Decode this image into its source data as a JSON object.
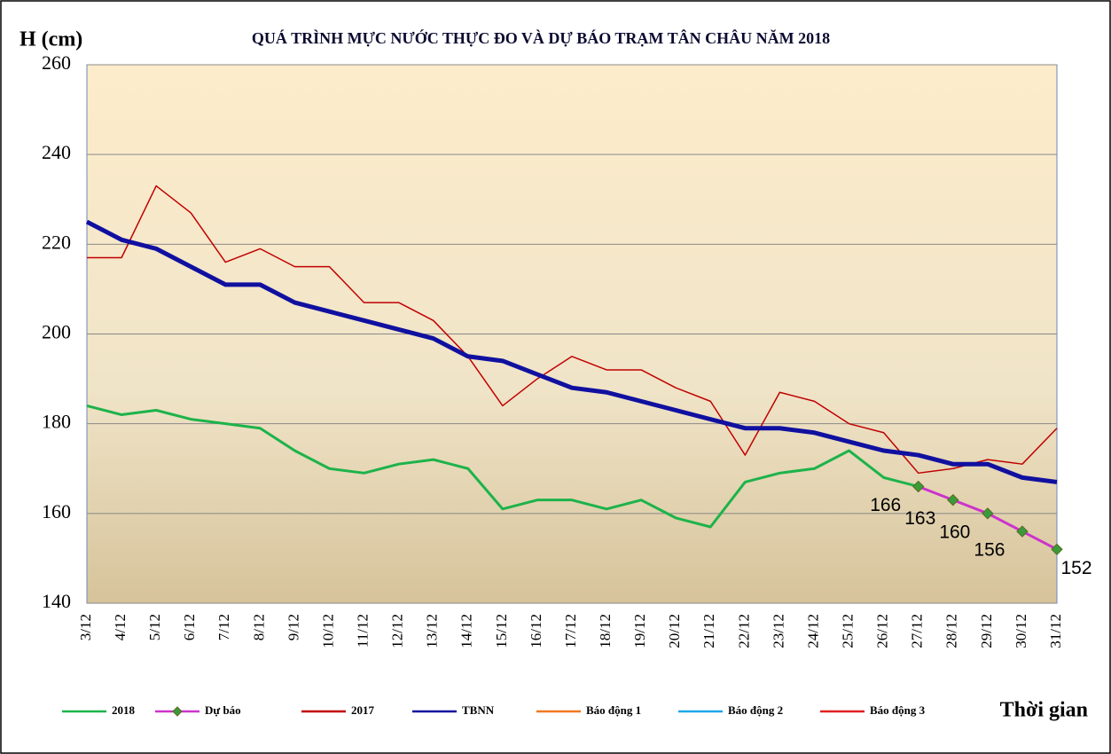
{
  "chart_data": {
    "type": "line",
    "title": "QUÁ TRÌNH MỰC NƯỚC THỰC ĐO VÀ DỰ BÁO TRẠM TÂN CHÂU NĂM 2018",
    "y_label": "H (cm)",
    "x_label": "Thời gian",
    "categories": [
      "3/12",
      "4/12",
      "5/12",
      "6/12",
      "7/12",
      "8/12",
      "9/12",
      "10/12",
      "11/12",
      "12/12",
      "13/12",
      "14/12",
      "15/12",
      "16/12",
      "17/12",
      "18/12",
      "19/12",
      "20/12",
      "21/12",
      "22/12",
      "23/12",
      "24/12",
      "25/12",
      "26/12",
      "27/12",
      "28/12",
      "29/12",
      "30/12",
      "31/12"
    ],
    "series": [
      {
        "name": "2018",
        "color": "#1db34a",
        "width": 3,
        "values": [
          184,
          182,
          183,
          181,
          180,
          179,
          174,
          170,
          169,
          171,
          172,
          170,
          161,
          163,
          163,
          161,
          163,
          159,
          157,
          167,
          169,
          170,
          174,
          168,
          166,
          null,
          null,
          null,
          null
        ]
      },
      {
        "name": "Dự báo",
        "color": "#cc33cc",
        "width": 3,
        "marker": "diamond",
        "marker_color": "#3a9a3a",
        "values": [
          null,
          null,
          null,
          null,
          null,
          null,
          null,
          null,
          null,
          null,
          null,
          null,
          null,
          null,
          null,
          null,
          null,
          null,
          null,
          null,
          null,
          null,
          null,
          null,
          166,
          163,
          160,
          156,
          152
        ],
        "show_labels": true
      },
      {
        "name": "2017",
        "color": "#c00000",
        "width": 1.5,
        "values": [
          217,
          217,
          233,
          227,
          216,
          219,
          215,
          215,
          207,
          207,
          203,
          195,
          184,
          190,
          195,
          192,
          192,
          188,
          185,
          173,
          187,
          185,
          180,
          178,
          169,
          170,
          172,
          171,
          179
        ]
      },
      {
        "name": "TBNN",
        "color": "#1010a0",
        "width": 5,
        "values": [
          225,
          221,
          219,
          215,
          211,
          211,
          207,
          205,
          203,
          201,
          199,
          195,
          194,
          191,
          188,
          187,
          185,
          183,
          181,
          179,
          179,
          178,
          176,
          174,
          173,
          171,
          171,
          168,
          167
        ]
      },
      {
        "name": "Báo động 1",
        "color": "#f07820",
        "width": 2,
        "values": [
          null,
          null,
          null,
          null,
          null,
          null,
          null,
          null,
          null,
          null,
          null,
          null,
          null,
          null,
          null,
          null,
          null,
          null,
          null,
          null,
          null,
          null,
          null,
          null,
          null,
          null,
          null,
          null,
          null
        ]
      },
      {
        "name": "Báo động 2",
        "color": "#1ca8e8",
        "width": 2,
        "values": [
          null,
          null,
          null,
          null,
          null,
          null,
          null,
          null,
          null,
          null,
          null,
          null,
          null,
          null,
          null,
          null,
          null,
          null,
          null,
          null,
          null,
          null,
          null,
          null,
          null,
          null,
          null,
          null,
          null
        ]
      },
      {
        "name": "Báo động 3",
        "color": "#e02020",
        "width": 2,
        "values": [
          null,
          null,
          null,
          null,
          null,
          null,
          null,
          null,
          null,
          null,
          null,
          null,
          null,
          null,
          null,
          null,
          null,
          null,
          null,
          null,
          null,
          null,
          null,
          null,
          null,
          null,
          null,
          null,
          null
        ]
      }
    ],
    "ylim": [
      140,
      260
    ],
    "yticks": [
      140,
      160,
      180,
      200,
      220,
      240,
      260
    ],
    "grid": true
  }
}
